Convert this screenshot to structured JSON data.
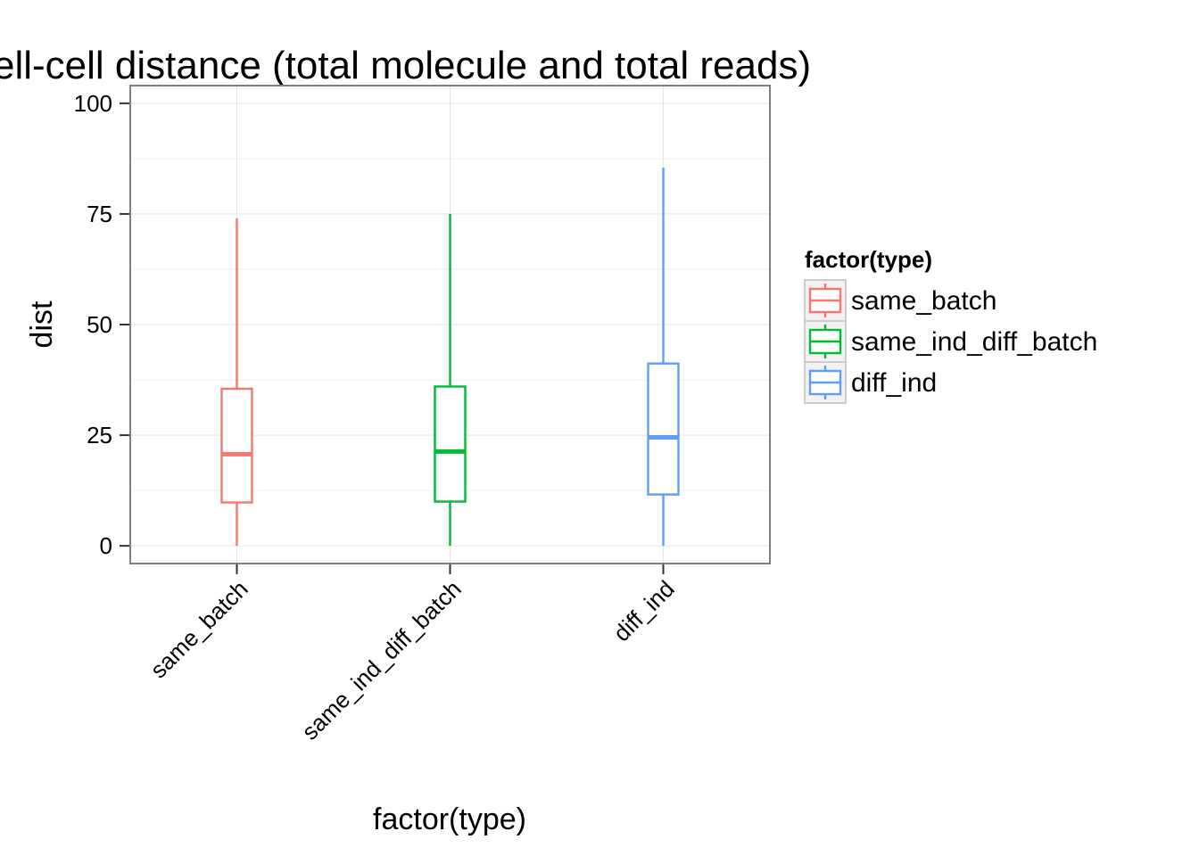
{
  "chart_data": {
    "type": "box",
    "title": "ell-cell distance (total molecule and total reads)",
    "xlabel": "factor(type)",
    "ylabel": "dist",
    "ylim": [
      -4,
      104
    ],
    "yticks": [
      0,
      25,
      50,
      75,
      100
    ],
    "grid": true,
    "legend": {
      "title": "factor(type)",
      "position": "right"
    },
    "categories": [
      "same_batch",
      "same_ind_diff_batch",
      "diff_ind"
    ],
    "series": [
      {
        "name": "same_batch",
        "color": "#F8766D",
        "min": 0,
        "q1": 9.8,
        "median": 20.7,
        "q3": 35.5,
        "max": 74
      },
      {
        "name": "same_ind_diff_batch",
        "color": "#00BA38",
        "min": 0,
        "q1": 10,
        "median": 21.3,
        "q3": 36,
        "max": 75
      },
      {
        "name": "diff_ind",
        "color": "#619CFF",
        "min": 0,
        "q1": 11.6,
        "median": 24.5,
        "q3": 41.2,
        "max": 85.5
      }
    ]
  }
}
